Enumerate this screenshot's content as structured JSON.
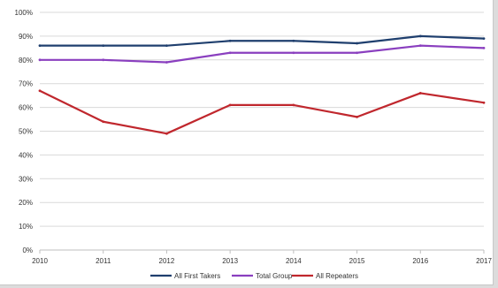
{
  "chart_data": {
    "type": "line",
    "title": "",
    "xlabel": "",
    "ylabel": "",
    "categories": [
      "2010",
      "2011",
      "2012",
      "2013",
      "2014",
      "2015",
      "2016",
      "2017"
    ],
    "ylim": [
      0,
      100
    ],
    "yticks": [
      "0%",
      "10%",
      "20%",
      "30%",
      "40%",
      "50%",
      "60%",
      "70%",
      "80%",
      "90%",
      "100%"
    ],
    "grid": true,
    "legend_position": "bottom",
    "series": [
      {
        "name": "All First Takers",
        "color": "#1f3f6e",
        "values": [
          86,
          86,
          86,
          88,
          88,
          87,
          90,
          89
        ]
      },
      {
        "name": "Total Group",
        "color": "#8a3fbf",
        "values": [
          80,
          80,
          79,
          83,
          83,
          83,
          86,
          85
        ]
      },
      {
        "name": "All Repeaters",
        "color": "#c0272d",
        "values": [
          67,
          54,
          49,
          61,
          61,
          56,
          66,
          62
        ]
      }
    ]
  }
}
